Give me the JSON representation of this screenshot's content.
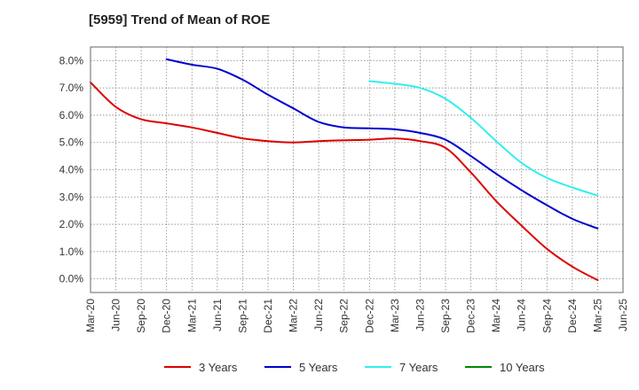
{
  "chart_data": {
    "type": "line",
    "title": "[5959]  Trend of Mean of ROE",
    "xlabel": "",
    "ylabel": "",
    "ylim": [
      -0.5,
      8.5
    ],
    "yticks": [
      0.0,
      1.0,
      2.0,
      3.0,
      4.0,
      5.0,
      6.0,
      7.0,
      8.0
    ],
    "ytick_labels": [
      "0.0%",
      "1.0%",
      "2.0%",
      "3.0%",
      "4.0%",
      "5.0%",
      "6.0%",
      "7.0%",
      "8.0%"
    ],
    "categories": [
      "Mar-20",
      "Jun-20",
      "Sep-20",
      "Dec-20",
      "Mar-21",
      "Jun-21",
      "Sep-21",
      "Dec-21",
      "Mar-22",
      "Jun-22",
      "Sep-22",
      "Dec-22",
      "Mar-23",
      "Jun-23",
      "Sep-23",
      "Dec-23",
      "Mar-24",
      "Jun-24",
      "Sep-24",
      "Dec-24",
      "Mar-25",
      "Jun-25"
    ],
    "grid": true,
    "legend_position": "bottom",
    "series": [
      {
        "name": "3 Years",
        "color": "#dd0000",
        "values": [
          7.2,
          6.3,
          5.85,
          5.7,
          5.55,
          5.35,
          5.15,
          5.05,
          5.0,
          5.05,
          5.08,
          5.1,
          5.15,
          5.05,
          4.8,
          3.9,
          2.85,
          1.95,
          1.1,
          0.45,
          -0.05,
          null
        ]
      },
      {
        "name": "5 Years",
        "color": "#0000cc",
        "values": [
          null,
          null,
          null,
          8.05,
          7.85,
          7.7,
          7.3,
          6.75,
          6.25,
          5.75,
          5.55,
          5.52,
          5.48,
          5.35,
          5.1,
          4.5,
          3.85,
          3.25,
          2.7,
          2.2,
          1.85,
          null
        ]
      },
      {
        "name": "7 Years",
        "color": "#33eeee",
        "values": [
          null,
          null,
          null,
          null,
          null,
          null,
          null,
          null,
          null,
          null,
          null,
          7.25,
          7.15,
          7.0,
          6.6,
          5.9,
          5.05,
          4.25,
          3.7,
          3.35,
          3.05,
          null
        ]
      },
      {
        "name": "10 Years",
        "color": "#008800",
        "values": [
          null,
          null,
          null,
          null,
          null,
          null,
          null,
          null,
          null,
          null,
          null,
          null,
          null,
          null,
          null,
          null,
          null,
          null,
          null,
          null,
          null,
          null
        ]
      }
    ]
  }
}
